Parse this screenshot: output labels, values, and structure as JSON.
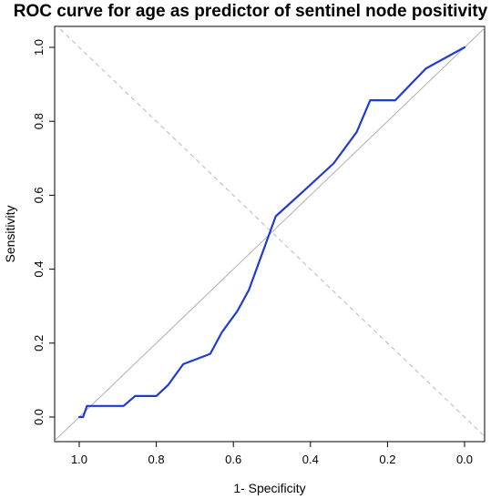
{
  "chart_data": {
    "type": "line",
    "title": "ROC curve for age as predictor of sentinel node positivity",
    "xlabel": "1- Specificity",
    "ylabel": "Sensitivity",
    "xlim": [
      1.0,
      0.0
    ],
    "ylim": [
      0.0,
      1.0
    ],
    "x_reversed": true,
    "x_ticks": [
      "1.0",
      "0.8",
      "0.6",
      "0.4",
      "0.2",
      "0.0"
    ],
    "y_ticks": [
      "0.0",
      "0.2",
      "0.4",
      "0.6",
      "0.8",
      "1.0"
    ],
    "grid": false,
    "series": [
      {
        "color": "#1f3bd6",
        "x": [
          1.0,
          0.99,
          0.98,
          0.97,
          0.885,
          0.855,
          0.82,
          0.8,
          0.77,
          0.73,
          0.66,
          0.63,
          0.59,
          0.56,
          0.52,
          0.49,
          0.42,
          0.34,
          0.28,
          0.245,
          0.18,
          0.1,
          0.0
        ],
        "y": [
          0.0,
          0.0,
          0.03,
          0.03,
          0.03,
          0.057,
          0.057,
          0.057,
          0.086,
          0.143,
          0.171,
          0.229,
          0.286,
          0.343,
          0.457,
          0.543,
          0.609,
          0.686,
          0.771,
          0.857,
          0.857,
          0.943,
          1.0
        ]
      }
    ],
    "reference_lines": [
      {
        "style": "solid",
        "color": "#b0b0b0",
        "from": [
          1.0,
          0.0
        ],
        "to": [
          0.0,
          1.0
        ]
      },
      {
        "style": "dashed",
        "color": "#b8b8b8",
        "from": [
          1.0,
          1.0
        ],
        "to": [
          0.0,
          0.0
        ]
      }
    ]
  }
}
